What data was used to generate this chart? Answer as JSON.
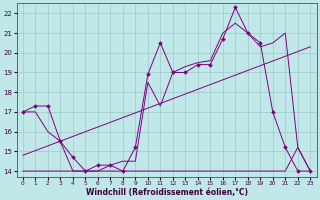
{
  "xlabel": "Windchill (Refroidissement éolien,°C)",
  "background_color": "#c0e8e8",
  "grid_color": "#a0c8c8",
  "line_color": "#800080",
  "ylim": [
    13.7,
    22.5
  ],
  "xlim": [
    -0.5,
    23.5
  ],
  "yticks": [
    14,
    15,
    16,
    17,
    18,
    19,
    20,
    21,
    22
  ],
  "xticks": [
    0,
    1,
    2,
    3,
    4,
    5,
    6,
    7,
    8,
    9,
    10,
    11,
    12,
    13,
    14,
    15,
    16,
    17,
    18,
    19,
    20,
    21,
    22,
    23
  ],
  "series1_x": [
    0,
    1,
    2,
    3,
    4,
    5,
    6,
    7,
    8,
    9,
    10,
    11,
    12,
    13,
    14,
    15,
    16,
    17,
    18,
    19,
    20,
    21,
    22,
    23
  ],
  "series1_y": [
    17.0,
    17.3,
    17.3,
    15.5,
    14.7,
    14.0,
    14.3,
    14.3,
    14.0,
    15.2,
    18.9,
    20.5,
    19.0,
    19.0,
    19.4,
    19.4,
    20.7,
    22.3,
    21.0,
    20.5,
    17.0,
    15.2,
    14.0,
    14.0
  ],
  "series2_x": [
    0,
    1,
    2,
    3,
    4,
    5,
    6,
    7,
    8,
    9,
    10,
    11,
    12,
    13,
    14,
    15,
    16,
    17,
    18,
    19,
    20,
    21,
    22,
    23
  ],
  "series2_y": [
    17.0,
    17.0,
    16.0,
    15.5,
    14.0,
    14.0,
    14.0,
    14.3,
    14.5,
    14.5,
    18.5,
    17.3,
    19.0,
    19.3,
    19.5,
    19.6,
    21.0,
    21.5,
    21.0,
    20.3,
    20.5,
    21.0,
    15.2,
    14.0
  ],
  "series3_x": [
    0,
    1,
    2,
    3,
    4,
    5,
    6,
    7,
    8,
    9,
    10,
    11,
    12,
    13,
    14,
    15,
    16,
    17,
    18,
    19,
    20,
    21,
    22,
    23
  ],
  "series3_y": [
    14.0,
    14.0,
    14.0,
    14.0,
    14.0,
    14.0,
    14.0,
    14.0,
    14.0,
    14.0,
    14.0,
    14.0,
    14.0,
    14.0,
    14.0,
    14.0,
    14.0,
    14.0,
    14.0,
    14.0,
    14.0,
    14.0,
    15.2,
    14.0
  ],
  "trend_x": [
    0,
    23
  ],
  "trend_y": [
    14.8,
    20.3
  ]
}
